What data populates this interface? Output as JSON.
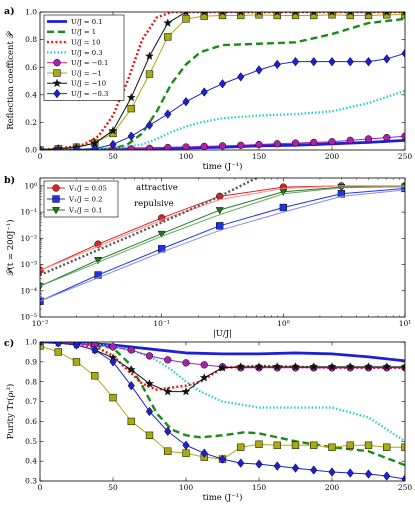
{
  "chart_data": [
    {
      "panel": "a)",
      "type": "line",
      "xlabel": "time (J⁻¹)",
      "ylabel": "Reflection coefficent 𝒫",
      "xlim": [
        0,
        250
      ],
      "ylim": [
        0,
        1.0
      ],
      "xticks": [
        "0",
        "50",
        "100",
        "150",
        "200",
        "250"
      ],
      "yticks": [
        "0.0",
        "0.2",
        "0.4",
        "0.6",
        "0.8",
        "1.0"
      ],
      "legend_position": "top-left",
      "series": [
        {
          "name": "U/J = 0.1",
          "color": "#1f1fd6",
          "style": "solid-thick",
          "marker": "none",
          "x": [
            0,
            25,
            50,
            75,
            100,
            125,
            150,
            175,
            200,
            225,
            250
          ],
          "y": [
            0.0,
            0.0,
            0.005,
            0.01,
            0.015,
            0.02,
            0.03,
            0.035,
            0.045,
            0.055,
            0.07
          ]
        },
        {
          "name": "U/J = 1",
          "color": "#1a8a1a",
          "style": "dashed",
          "marker": "none",
          "x": [
            0,
            25,
            50,
            60,
            70,
            80,
            90,
            100,
            110,
            125,
            150,
            175,
            200,
            225,
            250
          ],
          "y": [
            0.0,
            0.0,
            0.01,
            0.04,
            0.12,
            0.28,
            0.48,
            0.62,
            0.71,
            0.76,
            0.77,
            0.78,
            0.84,
            0.92,
            0.95
          ]
        },
        {
          "name": "U/J = 10",
          "color": "#ee1111",
          "style": "dotted",
          "marker": "none",
          "x": [
            0,
            20,
            30,
            40,
            50,
            60,
            70,
            80,
            90,
            100,
            125,
            150,
            200,
            250
          ],
          "y": [
            0.0,
            0.02,
            0.04,
            0.1,
            0.25,
            0.5,
            0.8,
            0.96,
            1.0,
            1.0,
            1.0,
            1.0,
            1.0,
            1.0
          ]
        },
        {
          "name": "U/J = 0.3",
          "color": "#33cccc",
          "style": "dotted-thick",
          "marker": "none",
          "x": [
            0,
            25,
            50,
            70,
            80,
            90,
            100,
            110,
            125,
            150,
            175,
            200,
            225,
            250
          ],
          "y": [
            0.0,
            0.0,
            0.01,
            0.04,
            0.08,
            0.13,
            0.17,
            0.2,
            0.23,
            0.25,
            0.26,
            0.28,
            0.34,
            0.43
          ]
        },
        {
          "name": "U/J = −0.1",
          "color": "#aa22aa",
          "style": "solid",
          "marker": "circle",
          "x": [
            0,
            12.5,
            25,
            37.5,
            50,
            62.5,
            75,
            87.5,
            100,
            112.5,
            125,
            137.5,
            150,
            162.5,
            175,
            187.5,
            200,
            212.5,
            225,
            237.5,
            250
          ],
          "y": [
            0.0,
            0.0,
            0.0,
            0.0,
            0.005,
            0.008,
            0.012,
            0.018,
            0.022,
            0.026,
            0.03,
            0.034,
            0.04,
            0.045,
            0.05,
            0.055,
            0.06,
            0.07,
            0.08,
            0.09,
            0.1
          ]
        },
        {
          "name": "U/J = −1",
          "color": "#aaaa11",
          "style": "solid",
          "marker": "square",
          "x": [
            0,
            12.5,
            25,
            37.5,
            50,
            62.5,
            75,
            87.5,
            100,
            112.5,
            125,
            137.5,
            150,
            162.5,
            175,
            187.5,
            200,
            212.5,
            225,
            237.5,
            250
          ],
          "y": [
            0.0,
            0.01,
            0.02,
            0.05,
            0.12,
            0.3,
            0.55,
            0.82,
            0.95,
            0.97,
            0.975,
            0.975,
            0.98,
            0.975,
            0.975,
            0.975,
            0.98,
            0.975,
            0.975,
            0.98,
            0.98
          ]
        },
        {
          "name": "U/J = −10",
          "color": "#111111",
          "style": "solid",
          "marker": "star",
          "x": [
            0,
            12.5,
            25,
            37.5,
            50,
            62.5,
            75,
            87.5,
            100,
            112.5,
            125,
            137.5,
            150,
            162.5,
            175,
            187.5,
            200,
            212.5,
            225,
            237.5,
            250
          ],
          "y": [
            0.0,
            0.01,
            0.02,
            0.05,
            0.14,
            0.38,
            0.68,
            0.92,
            1.0,
            1.0,
            1.0,
            1.0,
            1.0,
            1.0,
            1.0,
            1.0,
            1.0,
            1.0,
            1.0,
            1.0,
            1.0
          ]
        },
        {
          "name": "U/J = −0.3",
          "color": "#1f1fd6",
          "style": "solid",
          "marker": "diamond",
          "x": [
            0,
            12.5,
            25,
            37.5,
            50,
            62.5,
            75,
            87.5,
            100,
            112.5,
            125,
            137.5,
            150,
            162.5,
            175,
            187.5,
            200,
            212.5,
            225,
            237.5,
            250
          ],
          "y": [
            0.0,
            0.0,
            0.0,
            0.01,
            0.04,
            0.1,
            0.18,
            0.26,
            0.35,
            0.42,
            0.48,
            0.53,
            0.58,
            0.62,
            0.64,
            0.64,
            0.64,
            0.64,
            0.64,
            0.66,
            0.7
          ]
        }
      ]
    },
    {
      "panel": "b)",
      "type": "line",
      "xscale": "log",
      "yscale": "log",
      "xlabel": "|U/J|",
      "ylabel": "𝒫(t = 200J⁻¹)",
      "xlim": [
        0.01,
        10
      ],
      "ylim": [
        1e-05,
        2
      ],
      "xticks": [
        "10⁻²",
        "10⁻¹",
        "10⁰",
        "10¹"
      ],
      "yticks": [
        "10⁻⁵",
        "10⁻⁴",
        "10⁻³",
        "10⁻²",
        "10⁻¹",
        "10⁰"
      ],
      "legend_position": "top-left",
      "annotations": [
        "attractive",
        "repulsive"
      ],
      "series": [
        {
          "name": "V₁/J = 0.05",
          "color": "#dd2222",
          "marker": "circle",
          "x": [
            0.01,
            0.03,
            0.1,
            0.3,
            1,
            3,
            10
          ],
          "y": [
            0.0006,
            0.006,
            0.06,
            0.4,
            0.9,
            1.0,
            1.0
          ]
        },
        {
          "name": "V₁/J = 0.2",
          "color": "#2233dd",
          "marker": "square",
          "x": [
            0.01,
            0.03,
            0.1,
            0.3,
            1,
            3,
            10
          ],
          "y": [
            4e-05,
            0.0004,
            0.004,
            0.03,
            0.15,
            0.5,
            0.8
          ]
        },
        {
          "name": "V₁/J = 0.1",
          "color": "#227722",
          "marker": "triangle-down",
          "x": [
            0.01,
            0.03,
            0.1,
            0.3,
            1,
            3,
            10
          ],
          "y": [
            0.00015,
            0.0015,
            0.015,
            0.12,
            0.6,
            0.9,
            0.95
          ]
        },
        {
          "name": "",
          "color": "#ff8888",
          "marker": "none",
          "x": [
            0.01,
            0.1,
            0.3,
            1,
            3,
            10
          ],
          "y": [
            0.0006,
            0.05,
            0.3,
            0.8,
            1.0,
            1.0
          ]
        },
        {
          "name": "",
          "color": "#8888ff",
          "marker": "none",
          "x": [
            0.01,
            0.1,
            0.3,
            1,
            3,
            10
          ],
          "y": [
            4e-05,
            0.003,
            0.02,
            0.1,
            0.4,
            0.7
          ]
        },
        {
          "name": "",
          "color": "#66aa66",
          "marker": "none",
          "x": [
            0.01,
            0.1,
            0.3,
            1,
            3,
            10
          ],
          "y": [
            0.00015,
            0.012,
            0.08,
            0.5,
            0.85,
            0.92
          ]
        },
        {
          "name": "",
          "color": "#555555",
          "style": "dotted",
          "marker": "none",
          "x": [
            0.01,
            0.1,
            0.3,
            0.6
          ],
          "y": [
            0.0004,
            0.04,
            0.4,
            2
          ]
        }
      ]
    },
    {
      "panel": "c)",
      "type": "line",
      "xlabel": "time (J⁻¹)",
      "ylabel": "Purity Tr(ρₗ²)",
      "xlim": [
        0,
        250
      ],
      "ylim": [
        0.3,
        1.0
      ],
      "xticks": [
        "0",
        "50",
        "100",
        "150",
        "200",
        "250"
      ],
      "yticks": [
        "0.3",
        "0.4",
        "0.5",
        "0.6",
        "0.7",
        "0.8",
        "0.9",
        "1.0"
      ],
      "series": [
        {
          "name": "U/J = 0.1",
          "color": "#1f1fd6",
          "style": "solid-thick",
          "marker": "none",
          "x": [
            0,
            25,
            50,
            75,
            100,
            125,
            150,
            175,
            200,
            225,
            250
          ],
          "y": [
            1.0,
            0.995,
            0.985,
            0.965,
            0.945,
            0.94,
            0.94,
            0.945,
            0.94,
            0.925,
            0.905
          ]
        },
        {
          "name": "U/J = 1",
          "color": "#1a8a1a",
          "style": "dashed",
          "marker": "none",
          "x": [
            0,
            25,
            50,
            60,
            70,
            80,
            90,
            100,
            110,
            125,
            140,
            150,
            175,
            200,
            225,
            250
          ],
          "y": [
            1.0,
            0.995,
            0.97,
            0.9,
            0.78,
            0.64,
            0.56,
            0.53,
            0.52,
            0.53,
            0.545,
            0.54,
            0.5,
            0.47,
            0.45,
            0.38
          ]
        },
        {
          "name": "U/J = 10",
          "color": "#ee1111",
          "style": "dotted",
          "marker": "none",
          "x": [
            0,
            25,
            40,
            50,
            60,
            70,
            80,
            90,
            100,
            110,
            125,
            150,
            200,
            250
          ],
          "y": [
            1.0,
            0.99,
            0.97,
            0.93,
            0.86,
            0.79,
            0.76,
            0.77,
            0.78,
            0.8,
            0.87,
            0.88,
            0.87,
            0.87
          ]
        },
        {
          "name": "U/J = 0.3",
          "color": "#33cccc",
          "style": "dotted-thick",
          "marker": "none",
          "x": [
            0,
            50,
            75,
            90,
            100,
            110,
            125,
            150,
            175,
            200,
            225,
            250
          ],
          "y": [
            1.0,
            0.98,
            0.93,
            0.86,
            0.8,
            0.75,
            0.7,
            0.67,
            0.67,
            0.67,
            0.62,
            0.5
          ]
        },
        {
          "name": "U/J = −0.1",
          "color": "#aa22aa",
          "style": "solid",
          "marker": "circle",
          "x": [
            0,
            12.5,
            25,
            37.5,
            50,
            62.5,
            75,
            87.5,
            100,
            112.5,
            125,
            137.5,
            150,
            162.5,
            175,
            187.5,
            200,
            212.5,
            225,
            237.5,
            250
          ],
          "y": [
            1.0,
            1.0,
            0.99,
            0.985,
            0.975,
            0.96,
            0.93,
            0.91,
            0.895,
            0.885,
            0.875,
            0.87,
            0.87,
            0.87,
            0.87,
            0.87,
            0.87,
            0.87,
            0.87,
            0.87,
            0.87
          ]
        },
        {
          "name": "U/J = −1",
          "color": "#aaaa11",
          "style": "solid",
          "marker": "square",
          "x": [
            0,
            12.5,
            25,
            37.5,
            50,
            62.5,
            75,
            87.5,
            100,
            112.5,
            125,
            137.5,
            150,
            162.5,
            175,
            187.5,
            200,
            212.5,
            225,
            237.5,
            250
          ],
          "y": [
            0.98,
            0.95,
            0.9,
            0.83,
            0.72,
            0.6,
            0.53,
            0.45,
            0.44,
            0.42,
            0.41,
            0.47,
            0.485,
            0.48,
            0.48,
            0.48,
            0.47,
            0.48,
            0.48,
            0.47,
            0.47
          ]
        },
        {
          "name": "U/J = −10",
          "color": "#111111",
          "style": "solid",
          "marker": "star",
          "x": [
            0,
            12.5,
            25,
            37.5,
            50,
            62.5,
            75,
            87.5,
            100,
            112.5,
            125,
            137.5,
            150,
            162.5,
            175,
            187.5,
            200,
            212.5,
            225,
            237.5,
            250
          ],
          "y": [
            1.0,
            0.995,
            0.985,
            0.96,
            0.92,
            0.86,
            0.79,
            0.75,
            0.75,
            0.82,
            0.87,
            0.875,
            0.875,
            0.875,
            0.875,
            0.875,
            0.875,
            0.875,
            0.875,
            0.875,
            0.875
          ]
        },
        {
          "name": "U/J = −0.3",
          "color": "#1f1fd6",
          "style": "solid",
          "marker": "diamond",
          "x": [
            0,
            12.5,
            25,
            37.5,
            50,
            62.5,
            75,
            87.5,
            100,
            112.5,
            125,
            137.5,
            150,
            162.5,
            175,
            187.5,
            200,
            212.5,
            225,
            237.5,
            250
          ],
          "y": [
            1.0,
            0.995,
            0.985,
            0.96,
            0.9,
            0.78,
            0.65,
            0.55,
            0.48,
            0.44,
            0.41,
            0.39,
            0.385,
            0.375,
            0.365,
            0.355,
            0.345,
            0.34,
            0.335,
            0.325,
            0.31
          ]
        }
      ]
    }
  ]
}
